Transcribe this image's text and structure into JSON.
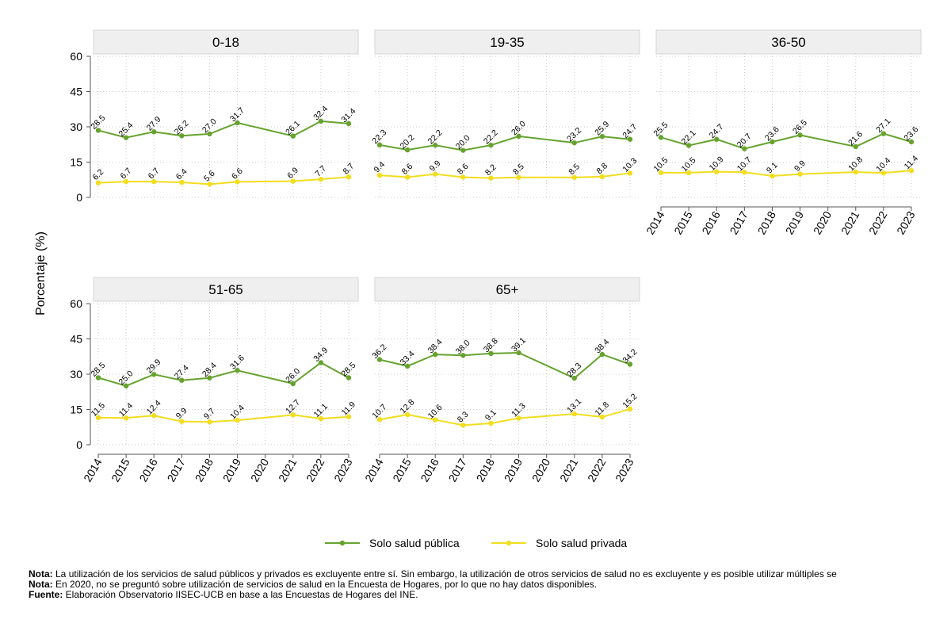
{
  "colors": {
    "public": "#66a32e",
    "private": "#f2dd1f",
    "strip_bg": "#efefef",
    "grid": "#bfbfbf"
  },
  "legend": {
    "public": "Solo salud pública",
    "private": "Solo salud privada"
  },
  "notes": [
    {
      "label": "Nota:",
      "text": " La utilización de los servicios de salud públicos y privados es excluyente entre sí. Sin embargo, la utilización de otros servicios de salud no es excluyente y es posible utilizar múltiples se"
    },
    {
      "label": "Nota:",
      "text": " En 2020, no se preguntó sobre utilización de servicios de salud en la Encuesta de Hogares, por lo que no hay datos disponibles."
    },
    {
      "label": "Fuente:",
      "text": " Elaboración Observatorio IISEC-UCB en base a las Encuestas de Hogares del INE."
    }
  ],
  "chart_data": {
    "type": "line",
    "ylabel": "Porcentaje (%)",
    "xlabel": "",
    "ylim": [
      0,
      60
    ],
    "yticks": [
      0,
      15,
      30,
      45,
      60
    ],
    "x": [
      "2014",
      "2015",
      "2016",
      "2017",
      "2018",
      "2019",
      "2020",
      "2021",
      "2022",
      "2023"
    ],
    "grid": true,
    "legend_position": "bottom",
    "panels": [
      {
        "title": "0-18",
        "series": [
          {
            "name": "Solo salud pública",
            "values": [
              28.5,
              25.4,
              27.9,
              26.2,
              27.0,
              31.7,
              null,
              26.1,
              32.4,
              31.4
            ]
          },
          {
            "name": "Solo salud privada",
            "values": [
              6.2,
              6.7,
              6.7,
              6.4,
              5.6,
              6.6,
              null,
              6.9,
              7.7,
              8.7
            ]
          }
        ]
      },
      {
        "title": "19-35",
        "series": [
          {
            "name": "Solo salud pública",
            "values": [
              22.3,
              20.2,
              22.2,
              20.0,
              22.2,
              26.0,
              null,
              23.2,
              25.9,
              24.7
            ]
          },
          {
            "name": "Solo salud privada",
            "values": [
              9.4,
              8.6,
              9.9,
              8.6,
              8.2,
              8.5,
              null,
              8.5,
              8.8,
              10.3
            ]
          }
        ]
      },
      {
        "title": "36-50",
        "series": [
          {
            "name": "Solo salud pública",
            "values": [
              25.5,
              22.1,
              24.7,
              20.7,
              23.6,
              26.5,
              null,
              21.6,
              27.1,
              23.6
            ]
          },
          {
            "name": "Solo salud privada",
            "values": [
              10.5,
              10.5,
              10.9,
              10.7,
              9.1,
              9.9,
              null,
              10.8,
              10.4,
              11.4
            ]
          }
        ]
      },
      {
        "title": "51-65",
        "series": [
          {
            "name": "Solo salud pública",
            "values": [
              28.5,
              25.0,
              29.9,
              27.4,
              28.4,
              31.6,
              null,
              26.0,
              34.9,
              28.5
            ]
          },
          {
            "name": "Solo salud privada",
            "values": [
              11.5,
              11.4,
              12.4,
              9.9,
              9.7,
              10.4,
              null,
              12.7,
              11.1,
              11.9
            ]
          }
        ]
      },
      {
        "title": "65+",
        "series": [
          {
            "name": "Solo salud pública",
            "values": [
              36.2,
              33.4,
              38.4,
              38.0,
              38.8,
              39.1,
              null,
              28.3,
              38.4,
              34.2
            ]
          },
          {
            "name": "Solo salud privada",
            "values": [
              10.7,
              12.8,
              10.6,
              8.3,
              9.1,
              11.3,
              null,
              13.1,
              11.8,
              15.2
            ]
          }
        ]
      }
    ]
  }
}
